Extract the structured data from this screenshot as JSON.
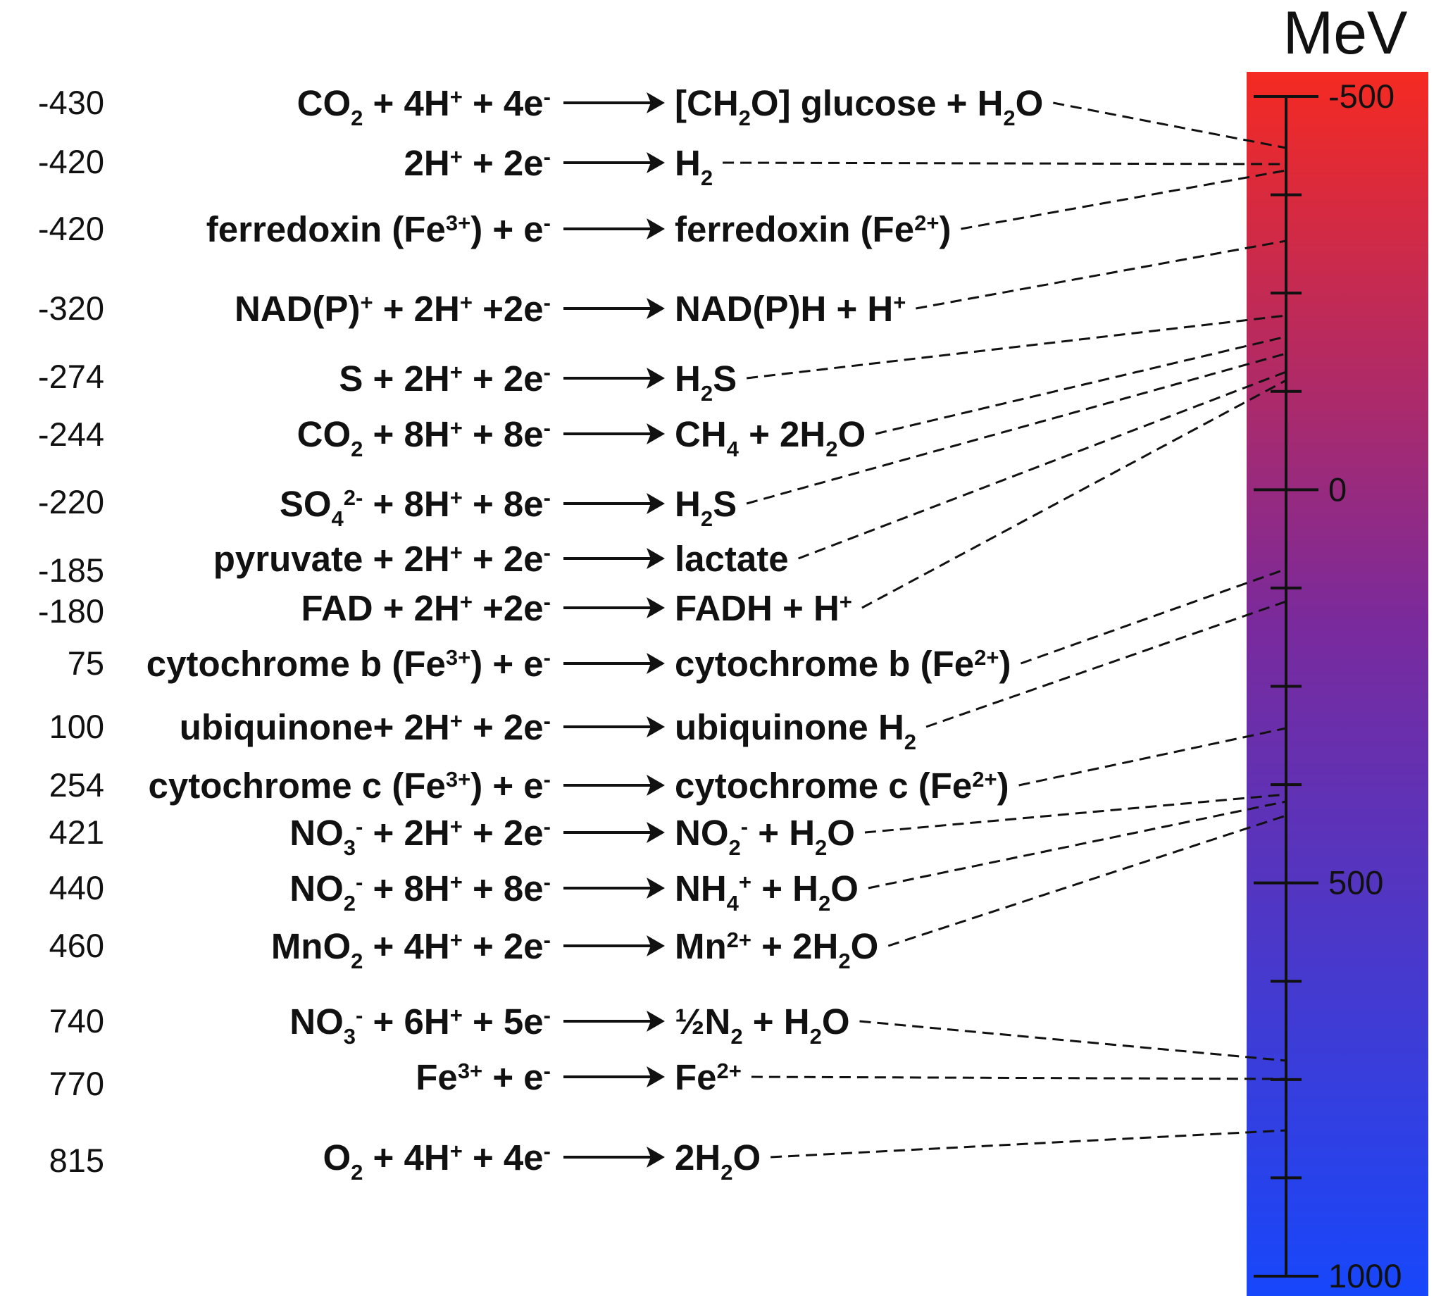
{
  "scale": {
    "unit_label": "MeV",
    "min": -500,
    "max": 1000,
    "minor_step": 125,
    "labeled_ticks": [
      "-500",
      "0",
      "500",
      "1000"
    ],
    "gradient": {
      "top_color": "#f52a22",
      "mid_color": "#7a2a9c",
      "bottom_color": "#1747fb"
    }
  },
  "reactions": [
    {
      "potential": "-430",
      "oxidant": [
        [
          "t",
          "CO"
        ],
        [
          "sub",
          "2"
        ],
        [
          "t",
          " + 4H"
        ],
        [
          "sup",
          "+"
        ],
        [
          "t",
          " + 4e"
        ],
        [
          "sup",
          "-"
        ]
      ],
      "reductant": [
        [
          "t",
          "[CH"
        ],
        [
          "sub",
          "2"
        ],
        [
          "t",
          "O] glucose + H"
        ],
        [
          "sub",
          "2"
        ],
        [
          "t",
          "O"
        ]
      ]
    },
    {
      "potential": "-420",
      "oxidant": [
        [
          "t",
          "2H"
        ],
        [
          "sup",
          "+"
        ],
        [
          "t",
          " + 2e"
        ],
        [
          "sup",
          "-"
        ]
      ],
      "reductant": [
        [
          "t",
          "H"
        ],
        [
          "sub",
          "2"
        ]
      ]
    },
    {
      "potential": "-420",
      "oxidant": [
        [
          "t",
          "ferredoxin (Fe"
        ],
        [
          "sup",
          "3+"
        ],
        [
          "t",
          ") + e"
        ],
        [
          "sup",
          "-"
        ]
      ],
      "reductant": [
        [
          "t",
          "ferredoxin (Fe"
        ],
        [
          "sup",
          "2+"
        ],
        [
          "t",
          ")"
        ]
      ]
    },
    {
      "potential": "-320",
      "oxidant": [
        [
          "t",
          "NAD(P)"
        ],
        [
          "sup",
          "+"
        ],
        [
          "t",
          " + 2H"
        ],
        [
          "sup",
          "+"
        ],
        [
          "t",
          " +2e"
        ],
        [
          "sup",
          "-"
        ]
      ],
      "reductant": [
        [
          "t",
          "NAD(P)H + H"
        ],
        [
          "sup",
          "+"
        ]
      ]
    },
    {
      "potential": "-274",
      "oxidant": [
        [
          "t",
          "S + 2H"
        ],
        [
          "sup",
          "+"
        ],
        [
          "t",
          " + 2e"
        ],
        [
          "sup",
          "-"
        ]
      ],
      "reductant": [
        [
          "t",
          "H"
        ],
        [
          "sub",
          "2"
        ],
        [
          "t",
          "S"
        ]
      ]
    },
    {
      "potential": "-244",
      "oxidant": [
        [
          "t",
          "CO"
        ],
        [
          "sub",
          "2"
        ],
        [
          "t",
          " + 8H"
        ],
        [
          "sup",
          "+"
        ],
        [
          "t",
          " + 8e"
        ],
        [
          "sup",
          "-"
        ]
      ],
      "reductant": [
        [
          "t",
          "CH"
        ],
        [
          "sub",
          "4"
        ],
        [
          "t",
          " + 2H"
        ],
        [
          "sub",
          "2"
        ],
        [
          "t",
          "O"
        ]
      ]
    },
    {
      "potential": "-220",
      "oxidant": [
        [
          "t",
          "SO"
        ],
        [
          "subsup",
          "4",
          "2-"
        ],
        [
          "t",
          " + 8H"
        ],
        [
          "sup",
          "+"
        ],
        [
          "t",
          " + 8e"
        ],
        [
          "sup",
          "-"
        ]
      ],
      "reductant": [
        [
          "t",
          "H"
        ],
        [
          "sub",
          "2"
        ],
        [
          "t",
          "S"
        ]
      ]
    },
    {
      "potential": "-185",
      "oxidant": [
        [
          "t",
          "pyruvate + 2H"
        ],
        [
          "sup",
          "+"
        ],
        [
          "t",
          " + 2e"
        ],
        [
          "sup",
          "-"
        ]
      ],
      "reductant": [
        [
          "t",
          "lactate"
        ]
      ]
    },
    {
      "potential": "-180",
      "oxidant": [
        [
          "t",
          "FAD + 2H"
        ],
        [
          "sup",
          "+"
        ],
        [
          "t",
          " +2e"
        ],
        [
          "sup",
          "-"
        ]
      ],
      "reductant": [
        [
          "t",
          "FADH + H"
        ],
        [
          "sup",
          "+"
        ]
      ]
    },
    {
      "potential": "75",
      "oxidant": [
        [
          "t",
          "cytochrome b (Fe"
        ],
        [
          "sup",
          "3+"
        ],
        [
          "t",
          ") + e"
        ],
        [
          "sup",
          "-"
        ]
      ],
      "reductant": [
        [
          "t",
          "cytochrome b (Fe"
        ],
        [
          "sup",
          "2+"
        ],
        [
          "t",
          ")"
        ]
      ]
    },
    {
      "potential": "100",
      "oxidant": [
        [
          "t",
          "ubiquinone+ 2H"
        ],
        [
          "sup",
          "+"
        ],
        [
          "t",
          " + 2e"
        ],
        [
          "sup",
          "-"
        ]
      ],
      "reductant": [
        [
          "t",
          "ubiquinone H"
        ],
        [
          "sub",
          "2"
        ]
      ]
    },
    {
      "potential": "254",
      "oxidant": [
        [
          "t",
          "cytochrome c (Fe"
        ],
        [
          "sup",
          "3+"
        ],
        [
          "t",
          ") + e"
        ],
        [
          "sup",
          "-"
        ]
      ],
      "reductant": [
        [
          "t",
          "cytochrome c (Fe"
        ],
        [
          "sup",
          "2+"
        ],
        [
          "t",
          ")"
        ]
      ]
    },
    {
      "potential": "421",
      "oxidant": [
        [
          "t",
          "NO"
        ],
        [
          "subsup",
          "3",
          "-"
        ],
        [
          "t",
          " + 2H"
        ],
        [
          "sup",
          "+"
        ],
        [
          "t",
          " + 2e"
        ],
        [
          "sup",
          "-"
        ]
      ],
      "reductant": [
        [
          "t",
          "NO"
        ],
        [
          "subsup",
          "2",
          "-"
        ],
        [
          "t",
          " + H"
        ],
        [
          "sub",
          "2"
        ],
        [
          "t",
          "O"
        ]
      ]
    },
    {
      "potential": "440",
      "oxidant": [
        [
          "t",
          "NO"
        ],
        [
          "subsup",
          "2",
          "-"
        ],
        [
          "t",
          " + 8H"
        ],
        [
          "sup",
          "+"
        ],
        [
          "t",
          " + 8e"
        ],
        [
          "sup",
          "-"
        ]
      ],
      "reductant": [
        [
          "t",
          "NH"
        ],
        [
          "subsup",
          "4",
          "+"
        ],
        [
          "t",
          " + H"
        ],
        [
          "sub",
          "2"
        ],
        [
          "t",
          "O"
        ]
      ]
    },
    {
      "potential": "460",
      "oxidant": [
        [
          "t",
          "MnO"
        ],
        [
          "sub",
          "2"
        ],
        [
          "t",
          " + 4H"
        ],
        [
          "sup",
          "+"
        ],
        [
          "t",
          " + 2e"
        ],
        [
          "sup",
          "-"
        ]
      ],
      "reductant": [
        [
          "t",
          "Mn"
        ],
        [
          "sup",
          "2+"
        ],
        [
          "t",
          " + 2H"
        ],
        [
          "sub",
          "2"
        ],
        [
          "t",
          "O"
        ]
      ]
    },
    {
      "potential": "740",
      "oxidant": [
        [
          "t",
          "NO"
        ],
        [
          "subsup",
          "3",
          "-"
        ],
        [
          "t",
          " + 6H"
        ],
        [
          "sup",
          "+"
        ],
        [
          "t",
          " + 5e"
        ],
        [
          "sup",
          "-"
        ]
      ],
      "reductant": [
        [
          "t",
          "½N"
        ],
        [
          "sub",
          "2"
        ],
        [
          "t",
          " + H"
        ],
        [
          "sub",
          "2"
        ],
        [
          "t",
          "O"
        ]
      ]
    },
    {
      "potential": "770",
      "oxidant": [
        [
          "t",
          "Fe"
        ],
        [
          "sup",
          "3+"
        ],
        [
          "t",
          " + e"
        ],
        [
          "sup",
          "-"
        ]
      ],
      "reductant": [
        [
          "t",
          "Fe"
        ],
        [
          "sup",
          "2+"
        ]
      ]
    },
    {
      "potential": "815",
      "oxidant": [
        [
          "t",
          "O"
        ],
        [
          "sub",
          "2"
        ],
        [
          "t",
          " + 4H"
        ],
        [
          "sup",
          "+"
        ],
        [
          "t",
          " + 4e"
        ],
        [
          "sup",
          "-"
        ]
      ],
      "reductant": [
        [
          "t",
          "2H"
        ],
        [
          "sub",
          "2"
        ],
        [
          "t",
          "O"
        ]
      ]
    }
  ]
}
